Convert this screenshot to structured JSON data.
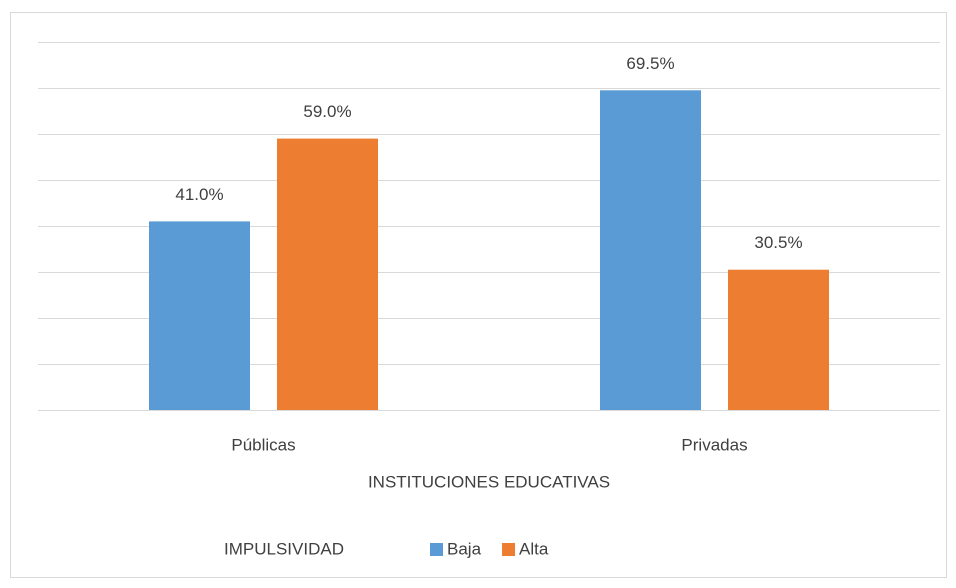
{
  "chart_data": {
    "type": "bar",
    "categories": [
      "Públicas",
      "Privadas"
    ],
    "series": [
      {
        "name": "Baja",
        "color": "#5b9bd5",
        "values": [
          41.0,
          69.5
        ],
        "value_labels": [
          "41.0%",
          "69.5%"
        ]
      },
      {
        "name": "Alta",
        "color": "#ed7d31",
        "values": [
          59.0,
          30.5
        ],
        "value_labels": [
          "59.0%",
          "30.5%"
        ]
      }
    ],
    "xlabel": "INSTITUCIONES EDUCATIVAS",
    "legend_title": "IMPULSIVIDAD",
    "legend": "bottom",
    "ylim": [
      0,
      80
    ],
    "yticks": [
      0,
      10,
      20,
      30,
      40,
      50,
      60,
      70,
      80
    ],
    "grid": true
  }
}
